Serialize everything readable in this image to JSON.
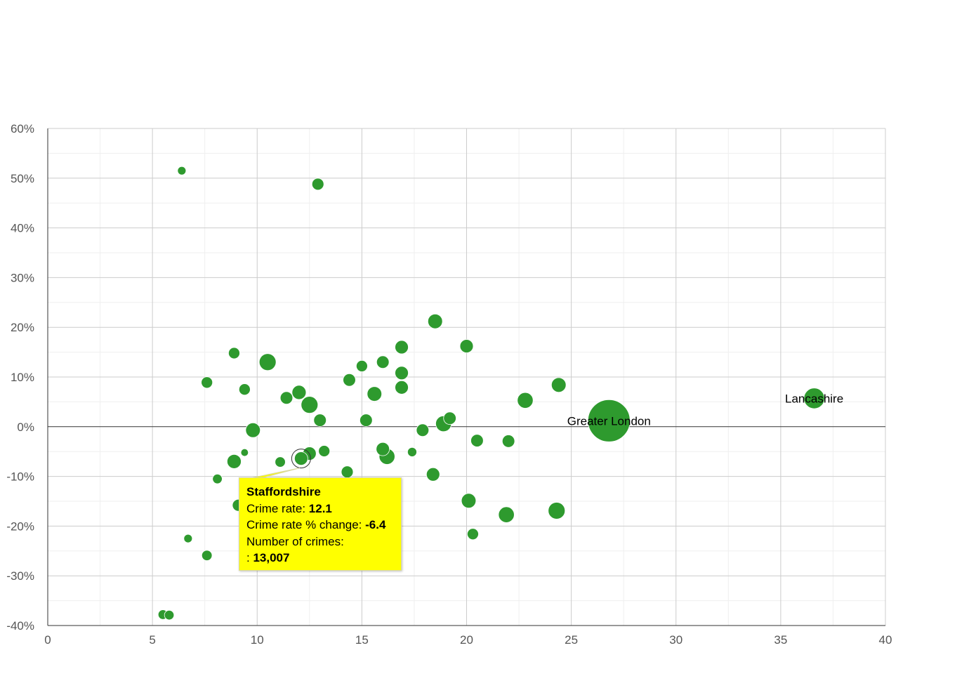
{
  "chart_data": {
    "type": "scatter",
    "xlabel": "",
    "ylabel": "",
    "xlim": [
      0,
      40
    ],
    "ylim": [
      -40,
      60
    ],
    "x_ticks": [
      0,
      5,
      10,
      15,
      20,
      25,
      30,
      35,
      40
    ],
    "x_tick_labels": [
      "0",
      "5",
      "10",
      "15",
      "20",
      "25",
      "30",
      "35",
      "40"
    ],
    "y_ticks": [
      60,
      50,
      40,
      30,
      20,
      10,
      0,
      -10,
      -20,
      -30,
      -40
    ],
    "y_tick_labels": [
      "60%",
      "50%",
      "40%",
      "30%",
      "20%",
      "10%",
      "0%",
      "-10%",
      "-20%",
      "-30%",
      "-40%"
    ],
    "bubble_color": "#2e9a2e",
    "points": [
      {
        "x": 6.4,
        "y": 51.5,
        "size": 1
      },
      {
        "x": 12.9,
        "y": 48.8,
        "size": 2
      },
      {
        "x": 18.5,
        "y": 21.2,
        "size": 3
      },
      {
        "x": 16.9,
        "y": 16.0,
        "size": 2.5
      },
      {
        "x": 20.0,
        "y": 16.2,
        "size": 2.5
      },
      {
        "x": 8.9,
        "y": 14.8,
        "size": 1.8
      },
      {
        "x": 10.5,
        "y": 13.0,
        "size": 4
      },
      {
        "x": 15.0,
        "y": 12.2,
        "size": 1.8
      },
      {
        "x": 16.0,
        "y": 13.0,
        "size": 2.2
      },
      {
        "x": 16.9,
        "y": 10.8,
        "size": 2.5
      },
      {
        "x": 7.6,
        "y": 8.9,
        "size": 1.8
      },
      {
        "x": 14.4,
        "y": 9.4,
        "size": 2.2
      },
      {
        "x": 24.4,
        "y": 8.4,
        "size": 3
      },
      {
        "x": 9.4,
        "y": 7.5,
        "size": 1.8
      },
      {
        "x": 12.0,
        "y": 6.9,
        "size": 2.8
      },
      {
        "x": 16.9,
        "y": 7.9,
        "size": 2.5
      },
      {
        "x": 15.6,
        "y": 6.6,
        "size": 3
      },
      {
        "x": 11.4,
        "y": 5.8,
        "size": 2.2
      },
      {
        "x": 12.5,
        "y": 4.4,
        "size": 4
      },
      {
        "x": 22.8,
        "y": 5.3,
        "size": 3.5
      },
      {
        "x": 36.6,
        "y": 5.7,
        "size": 6,
        "label": "Lancashire"
      },
      {
        "x": 26.8,
        "y": 1.2,
        "size": 25,
        "label": "Greater London"
      },
      {
        "x": 13.0,
        "y": 1.3,
        "size": 2.2
      },
      {
        "x": 15.2,
        "y": 1.3,
        "size": 2.2
      },
      {
        "x": 19.2,
        "y": 1.7,
        "size": 2.2
      },
      {
        "x": 18.9,
        "y": 0.6,
        "size": 3.5
      },
      {
        "x": 9.8,
        "y": -0.7,
        "size": 3
      },
      {
        "x": 17.9,
        "y": -0.7,
        "size": 2.2
      },
      {
        "x": 20.5,
        "y": -2.8,
        "size": 2.2
      },
      {
        "x": 22.0,
        "y": -2.9,
        "size": 2.2
      },
      {
        "x": 9.4,
        "y": -5.2,
        "size": 0.8
      },
      {
        "x": 12.5,
        "y": -5.4,
        "size": 2.5
      },
      {
        "x": 13.2,
        "y": -4.9,
        "size": 1.8
      },
      {
        "x": 16.0,
        "y": -4.5,
        "size": 2.5
      },
      {
        "x": 17.4,
        "y": -5.1,
        "size": 1.2
      },
      {
        "x": 16.2,
        "y": -6.0,
        "size": 3.5
      },
      {
        "x": 12.1,
        "y": -6.4,
        "size": 2.5,
        "highlighted": true
      },
      {
        "x": 8.9,
        "y": -7.0,
        "size": 2.8
      },
      {
        "x": 11.1,
        "y": -7.1,
        "size": 1.5
      },
      {
        "x": 14.3,
        "y": -9.1,
        "size": 2
      },
      {
        "x": 18.4,
        "y": -9.6,
        "size": 2.5
      },
      {
        "x": 8.1,
        "y": -10.5,
        "size": 1.3
      },
      {
        "x": 9.1,
        "y": -15.8,
        "size": 2
      },
      {
        "x": 20.1,
        "y": -14.9,
        "size": 3
      },
      {
        "x": 21.9,
        "y": -17.7,
        "size": 3.5
      },
      {
        "x": 24.3,
        "y": -16.9,
        "size": 4
      },
      {
        "x": 20.3,
        "y": -21.6,
        "size": 1.8
      },
      {
        "x": 6.7,
        "y": -22.5,
        "size": 1
      },
      {
        "x": 7.6,
        "y": -25.9,
        "size": 1.5
      },
      {
        "x": 5.5,
        "y": -37.8,
        "size": 1.3
      },
      {
        "x": 5.8,
        "y": -37.9,
        "size": 1.3
      }
    ]
  },
  "tooltip": {
    "title": "Staffordshire",
    "crime_rate_label": "Crime rate: ",
    "crime_rate_value": "12.1",
    "change_label": "Crime rate % change: ",
    "change_value": "-6.4",
    "crimes_label": "Number of crimes:",
    "crimes_prefix": ": ",
    "crimes_value": "13,007"
  }
}
